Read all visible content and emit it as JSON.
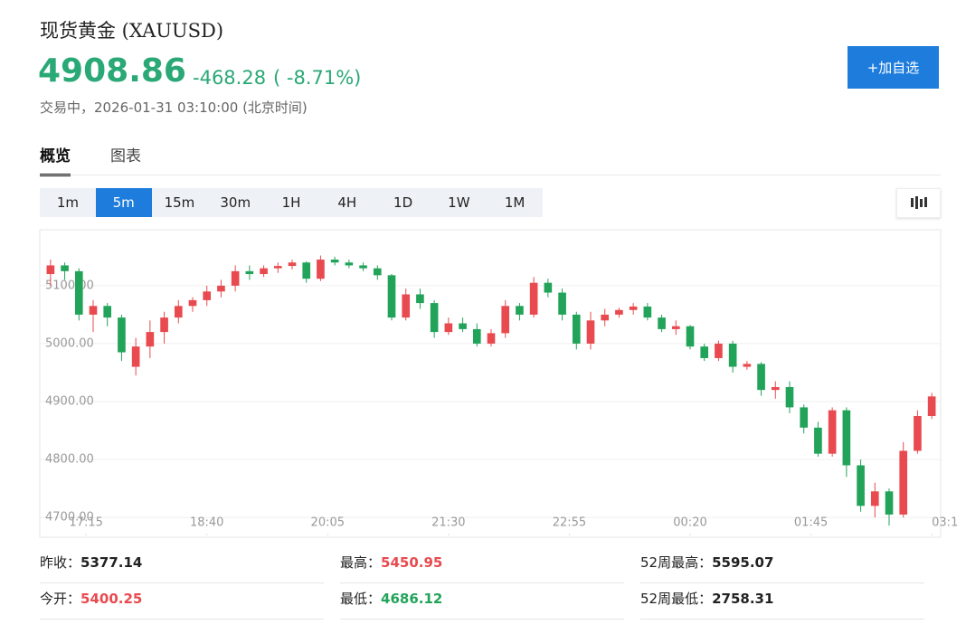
{
  "header": {
    "title": "现货黄金 (XAUUSD)",
    "price": 4908.86,
    "change": -468.28,
    "change_percent": "( -8.71%)",
    "status": "交易中，2026-01-31 03:10:00 (北京时间)",
    "button": "+加自选"
  },
  "tabs": [
    "概览",
    "图表"
  ],
  "active_tab": 0,
  "intervals": [
    "1m",
    "5m",
    "15m",
    "30m",
    "1H",
    "4H",
    "1D",
    "1W",
    "1M"
  ],
  "active_interval": 1,
  "chart_data": {
    "type": "candlestick",
    "up_color": "#e84a4f",
    "down_color": "#22a35a",
    "grid": true,
    "xlim": [
      0,
      630
    ],
    "ylim": [
      4669,
      5195
    ],
    "xticks": [
      {
        "value": 30,
        "label": "17:15"
      },
      {
        "value": 115,
        "label": "18:40"
      },
      {
        "value": 200,
        "label": "20:05"
      },
      {
        "value": 285,
        "label": "21:30"
      },
      {
        "value": 370,
        "label": "22:55"
      },
      {
        "value": 455,
        "label": "00:20"
      },
      {
        "value": 540,
        "label": "01:45"
      },
      {
        "value": 625,
        "label": "03:1"
      }
    ],
    "yticks": [
      {
        "value": 4700,
        "label": "4700.00"
      },
      {
        "value": 4800,
        "label": "4800.00"
      },
      {
        "value": 4900,
        "label": "4900.00"
      },
      {
        "value": 5000,
        "label": "5000.00"
      },
      {
        "value": 5100,
        "label": "5100.00"
      }
    ],
    "x": [
      5,
      15,
      25,
      35,
      45,
      55,
      65,
      75,
      85,
      95,
      105,
      115,
      125,
      135,
      145,
      155,
      165,
      175,
      185,
      195,
      205,
      215,
      225,
      235,
      245,
      255,
      265,
      275,
      285,
      295,
      305,
      315,
      325,
      335,
      345,
      355,
      365,
      375,
      385,
      395,
      405,
      415,
      425,
      435,
      445,
      455,
      465,
      475,
      485,
      495,
      505,
      515,
      525,
      535,
      545,
      555,
      565,
      575,
      585,
      595,
      605,
      615,
      625
    ],
    "open": [
      5120,
      5135,
      5125,
      5050,
      5065,
      5045,
      4960,
      4995,
      5020,
      5045,
      5065,
      5075,
      5090,
      5100,
      5125,
      5120,
      5130,
      5134,
      5140,
      5112,
      5145,
      5140,
      5135,
      5130,
      5118,
      5045,
      5085,
      5070,
      5020,
      5035,
      5025,
      5000,
      5018,
      5065,
      5050,
      5105,
      5088,
      5050,
      5000,
      5040,
      5050,
      5058,
      5064,
      5045,
      5025,
      5030,
      4995,
      4975,
      5000,
      4960,
      4965,
      4920,
      4925,
      4890,
      4855,
      4810,
      4885,
      4790,
      4720,
      4745,
      4705,
      4815,
      4875
    ],
    "high": [
      5145,
      5140,
      5130,
      5075,
      5070,
      5050,
      5010,
      5040,
      5055,
      5075,
      5080,
      5100,
      5110,
      5135,
      5135,
      5135,
      5140,
      5145,
      5142,
      5152,
      5150,
      5145,
      5140,
      5135,
      5120,
      5095,
      5095,
      5075,
      5045,
      5045,
      5035,
      5025,
      5075,
      5070,
      5115,
      5112,
      5095,
      5055,
      5055,
      5060,
      5062,
      5070,
      5070,
      5050,
      5040,
      5032,
      5000,
      5005,
      5005,
      4970,
      4968,
      4935,
      4935,
      4895,
      4865,
      4890,
      4890,
      4800,
      4760,
      4750,
      4830,
      4885,
      4915
    ],
    "low": [
      5100,
      5110,
      5040,
      5020,
      5030,
      4970,
      4945,
      4975,
      5000,
      5035,
      5055,
      5065,
      5080,
      5090,
      5110,
      5115,
      5122,
      5128,
      5105,
      5108,
      5135,
      5130,
      5125,
      5110,
      5040,
      5040,
      5060,
      5010,
      5015,
      5020,
      4995,
      4995,
      5010,
      5040,
      5045,
      5080,
      5040,
      4990,
      4990,
      5030,
      5045,
      5050,
      5040,
      5020,
      5015,
      4990,
      4970,
      4970,
      4950,
      4955,
      4910,
      4905,
      4880,
      4845,
      4805,
      4805,
      4770,
      4710,
      4700,
      4686,
      4700,
      4810,
      4870
    ],
    "close": [
      5135,
      5125,
      5050,
      5065,
      5045,
      4985,
      4995,
      5020,
      5045,
      5065,
      5075,
      5090,
      5100,
      5125,
      5120,
      5130,
      5134,
      5140,
      5112,
      5145,
      5140,
      5135,
      5130,
      5118,
      5045,
      5085,
      5070,
      5020,
      5035,
      5025,
      5000,
      5018,
      5065,
      5050,
      5105,
      5088,
      5050,
      5000,
      5040,
      5050,
      5058,
      5064,
      5045,
      5025,
      5030,
      4995,
      4975,
      5000,
      4960,
      4965,
      4920,
      4925,
      4890,
      4855,
      4810,
      4885,
      4790,
      4720,
      4745,
      4705,
      4815,
      4875,
      4908.86
    ]
  },
  "stats": [
    [
      {
        "label": "昨收：",
        "value": 5377.14,
        "color": "#222222"
      },
      {
        "label": "最高：",
        "value": 5450.95,
        "color": "#e84a4f"
      },
      {
        "label": "52周最高：",
        "value": 5595.07,
        "color": "#222222"
      }
    ],
    [
      {
        "label": "今开：",
        "value": 5400.25,
        "color": "#e84a4f"
      },
      {
        "label": "最低：",
        "value": 4686.12,
        "color": "#22a35a"
      },
      {
        "label": "52周最低：",
        "value": 2758.31,
        "color": "#222222"
      }
    ]
  ]
}
